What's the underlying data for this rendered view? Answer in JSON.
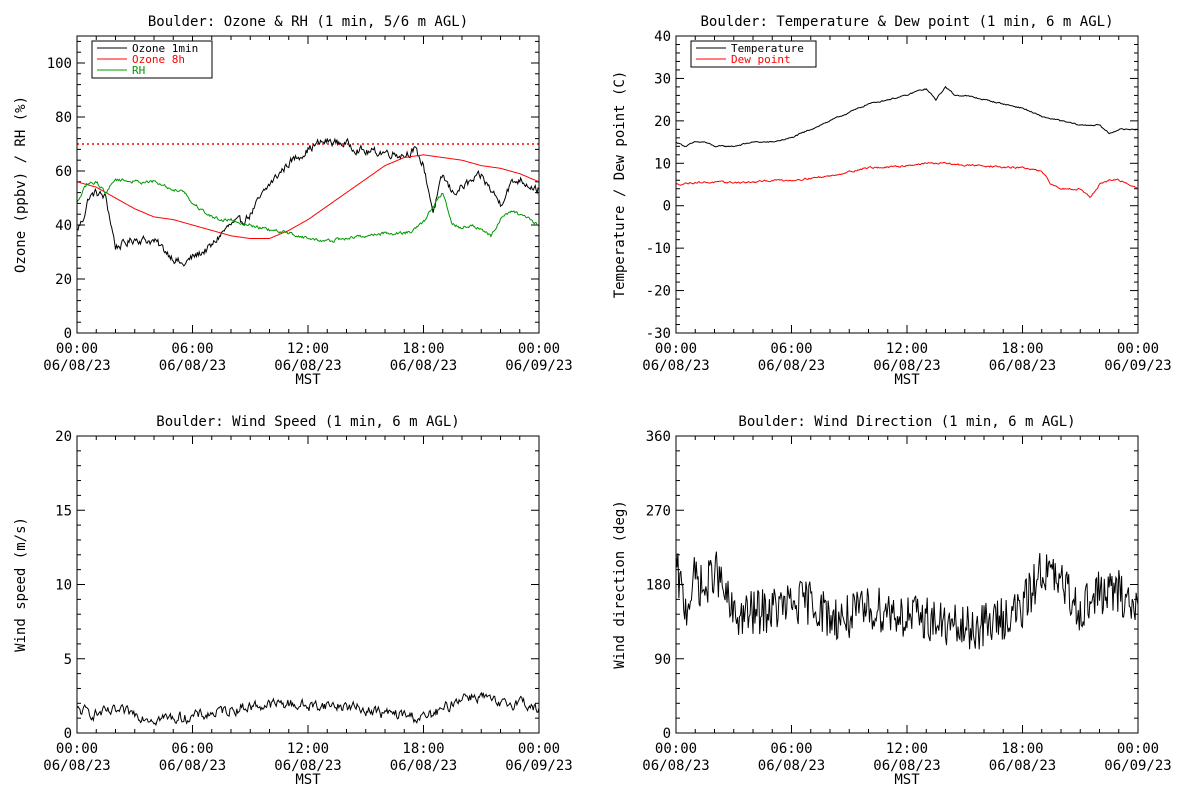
{
  "page": {
    "background": "#ffffff"
  },
  "chart_data": [
    {
      "id": "ozone",
      "type": "line",
      "title": "Boulder: Ozone & RH (1 min, 5/6 m AGL)",
      "xlabel": "MST",
      "ylabel": "Ozone (ppbv) / RH (%)",
      "xlim": [
        0,
        24
      ],
      "ylim": [
        0,
        110
      ],
      "x_ticks": [
        {
          "x": 0,
          "time": "00:00",
          "date": "06/08/23"
        },
        {
          "x": 6,
          "time": "06:00",
          "date": "06/08/23"
        },
        {
          "x": 12,
          "time": "12:00",
          "date": "06/08/23"
        },
        {
          "x": 18,
          "time": "18:00",
          "date": "06/08/23"
        },
        {
          "x": 24,
          "time": "00:00",
          "date": "06/09/23"
        }
      ],
      "y_ticks": [
        {
          "y": 0,
          "label": "0"
        },
        {
          "y": 20,
          "label": "20"
        },
        {
          "y": 40,
          "label": "40"
        },
        {
          "y": 60,
          "label": "60"
        },
        {
          "y": 80,
          "label": "80"
        },
        {
          "y": 100,
          "label": "100"
        }
      ],
      "reference_line": {
        "y": 70,
        "color": "#ff0000",
        "style": "dotted"
      },
      "legend_position": "top-left",
      "series": [
        {
          "name": "Ozone 1min",
          "color": "#000000",
          "noise": 3,
          "x": [
            0,
            0.3,
            0.6,
            1,
            1.5,
            2,
            2.5,
            3,
            4,
            5,
            5.5,
            6,
            7,
            7.5,
            8,
            8.5,
            9,
            10,
            11,
            12,
            12.5,
            13,
            14,
            15,
            16,
            17,
            17.5,
            18,
            18.5,
            19,
            19.5,
            20,
            21,
            22,
            22.5,
            23,
            24
          ],
          "y": [
            38,
            42,
            50,
            52,
            50,
            32,
            33,
            35,
            34,
            28,
            25,
            28,
            32,
            37,
            40,
            41,
            44,
            55,
            63,
            68,
            70,
            71,
            70,
            67,
            67,
            66,
            68,
            62,
            45,
            58,
            52,
            54,
            58,
            48,
            55,
            57,
            53
          ]
        },
        {
          "name": "Ozone 8h",
          "color": "#ff0000",
          "noise": 0,
          "x": [
            0,
            1,
            2,
            3,
            4,
            5,
            6,
            7,
            8,
            9,
            10,
            11,
            12,
            13,
            14,
            15,
            16,
            17,
            18,
            19,
            20,
            21,
            22,
            23,
            24
          ],
          "y": [
            56,
            54,
            50,
            46,
            43,
            42,
            40,
            38,
            36,
            35,
            35,
            38,
            42,
            47,
            52,
            57,
            62,
            65,
            66,
            65,
            64,
            62,
            61,
            59,
            56
          ]
        },
        {
          "name": "RH",
          "color": "#009900",
          "noise": 1.2,
          "x": [
            0,
            0.5,
            1,
            1.5,
            2,
            3,
            4,
            5,
            5.5,
            6,
            7,
            7.5,
            8,
            9,
            10,
            11,
            12,
            13,
            14,
            15,
            16,
            17,
            17.5,
            18,
            18.5,
            19,
            19.5,
            20,
            20.5,
            21,
            21.5,
            22,
            22.5,
            23,
            24
          ],
          "y": [
            48,
            55,
            56,
            52,
            57,
            56,
            56,
            53,
            53,
            48,
            43,
            42,
            42,
            40,
            38,
            37,
            35,
            34,
            35,
            36,
            37,
            37,
            38,
            41,
            47,
            52,
            40,
            39,
            40,
            38,
            36,
            42,
            45,
            44,
            40
          ]
        }
      ]
    },
    {
      "id": "temperature",
      "type": "line",
      "title": "Boulder: Temperature & Dew point (1 min, 6 m AGL)",
      "xlabel": "MST",
      "ylabel": "Temperature / Dew point (C)",
      "xlim": [
        0,
        24
      ],
      "ylim": [
        -30,
        40
      ],
      "x_ticks": [
        {
          "x": 0,
          "time": "00:00",
          "date": "06/08/23"
        },
        {
          "x": 6,
          "time": "06:00",
          "date": "06/08/23"
        },
        {
          "x": 12,
          "time": "12:00",
          "date": "06/08/23"
        },
        {
          "x": 18,
          "time": "18:00",
          "date": "06/08/23"
        },
        {
          "x": 24,
          "time": "00:00",
          "date": "06/09/23"
        }
      ],
      "y_ticks": [
        {
          "y": -30,
          "label": "-30"
        },
        {
          "y": -20,
          "label": "-20"
        },
        {
          "y": -10,
          "label": "-10"
        },
        {
          "y": 0,
          "label": "0"
        },
        {
          "y": 10,
          "label": "10"
        },
        {
          "y": 20,
          "label": "20"
        },
        {
          "y": 30,
          "label": "30"
        },
        {
          "y": 40,
          "label": "40"
        }
      ],
      "legend_position": "top-left",
      "series": [
        {
          "name": "Temperature",
          "color": "#000000",
          "noise": 0.3,
          "x": [
            0,
            0.5,
            1,
            1.5,
            2,
            3,
            4,
            5,
            6,
            7,
            7.5,
            8,
            9,
            10,
            11,
            12,
            12.5,
            13,
            13.5,
            14,
            14.5,
            15,
            16,
            17,
            18,
            19,
            20,
            21,
            22,
            22.5,
            23,
            24
          ],
          "y": [
            15,
            14,
            15,
            15,
            14,
            14,
            15,
            15,
            16,
            18,
            19,
            20,
            22,
            24,
            25,
            26,
            27,
            27.5,
            25,
            28,
            26,
            26,
            25,
            24,
            23,
            21,
            20,
            19,
            19,
            17,
            18,
            18
          ]
        },
        {
          "name": "Dew point",
          "color": "#ff0000",
          "noise": 0.4,
          "x": [
            0,
            1,
            2,
            3,
            4,
            5,
            6,
            7,
            8,
            9,
            10,
            11,
            12,
            13,
            14,
            15,
            16,
            17,
            18,
            19,
            19.5,
            20,
            21,
            21.5,
            22,
            22.5,
            23,
            23.5,
            24
          ],
          "y": [
            5,
            5.5,
            5.5,
            5.5,
            5.5,
            6,
            6,
            6.5,
            7,
            8,
            9,
            9,
            9.5,
            10,
            10,
            9.5,
            9.5,
            9,
            9,
            8,
            5,
            4,
            4,
            2,
            5,
            6,
            6,
            5,
            4
          ]
        }
      ]
    },
    {
      "id": "wind-speed",
      "type": "line",
      "title": "Boulder: Wind Speed (1 min, 6 m AGL)",
      "xlabel": "MST",
      "ylabel": "Wind speed (m/s)",
      "xlim": [
        0,
        24
      ],
      "ylim": [
        0,
        20
      ],
      "x_ticks": [
        {
          "x": 0,
          "time": "00:00",
          "date": "06/08/23"
        },
        {
          "x": 6,
          "time": "06:00",
          "date": "06/08/23"
        },
        {
          "x": 12,
          "time": "12:00",
          "date": "06/08/23"
        },
        {
          "x": 18,
          "time": "18:00",
          "date": "06/08/23"
        },
        {
          "x": 24,
          "time": "00:00",
          "date": "06/09/23"
        }
      ],
      "y_ticks": [
        {
          "y": 0,
          "label": "0"
        },
        {
          "y": 5,
          "label": "5"
        },
        {
          "y": 10,
          "label": "10"
        },
        {
          "y": 15,
          "label": "15"
        },
        {
          "y": 20,
          "label": "20"
        }
      ],
      "series": [
        {
          "name": "",
          "color": "#000000",
          "noise": 0.7,
          "floor": 0,
          "x": [
            0,
            1,
            2,
            3,
            4,
            5,
            6,
            7,
            8,
            9,
            10,
            11,
            12,
            13,
            14,
            15,
            16,
            17,
            18,
            19,
            20,
            21,
            22,
            23,
            24
          ],
          "y": [
            1.5,
            1.3,
            1.4,
            1.3,
            1,
            1,
            1.1,
            1.3,
            1.6,
            1.8,
            1.9,
            2,
            1.8,
            1.9,
            1.8,
            1.6,
            1.3,
            1.2,
            1,
            1.5,
            2.5,
            2.5,
            1.8,
            2.2,
            1.5
          ]
        }
      ]
    },
    {
      "id": "wind-direction",
      "type": "line",
      "title": "Boulder: Wind Direction (1 min, 6 m AGL)",
      "xlabel": "MST",
      "ylabel": "Wind direction (deg)",
      "xlim": [
        0,
        24
      ],
      "ylim": [
        0,
        360
      ],
      "x_ticks": [
        {
          "x": 0,
          "time": "00:00",
          "date": "06/08/23"
        },
        {
          "x": 6,
          "time": "06:00",
          "date": "06/08/23"
        },
        {
          "x": 12,
          "time": "12:00",
          "date": "06/08/23"
        },
        {
          "x": 18,
          "time": "18:00",
          "date": "06/08/23"
        },
        {
          "x": 24,
          "time": "00:00",
          "date": "06/09/23"
        }
      ],
      "y_ticks": [
        {
          "y": 0,
          "label": "0"
        },
        {
          "y": 90,
          "label": "90"
        },
        {
          "y": 180,
          "label": "180"
        },
        {
          "y": 270,
          "label": "270"
        },
        {
          "y": 360,
          "label": "360"
        }
      ],
      "series": [
        {
          "name": "",
          "color": "#000000",
          "noise": 28,
          "floor": 0,
          "ceil": 360,
          "x": [
            0,
            0.5,
            1,
            1.5,
            2,
            3,
            4,
            5,
            6,
            7,
            8,
            9,
            10,
            11,
            12,
            13,
            14,
            15,
            16,
            17,
            18,
            19,
            20,
            21,
            22,
            23,
            24
          ],
          "y": [
            200,
            150,
            190,
            170,
            200,
            140,
            145,
            150,
            155,
            160,
            140,
            140,
            150,
            150,
            140,
            140,
            130,
            125,
            130,
            140,
            150,
            200,
            180,
            150,
            170,
            170,
            150
          ]
        }
      ]
    }
  ]
}
